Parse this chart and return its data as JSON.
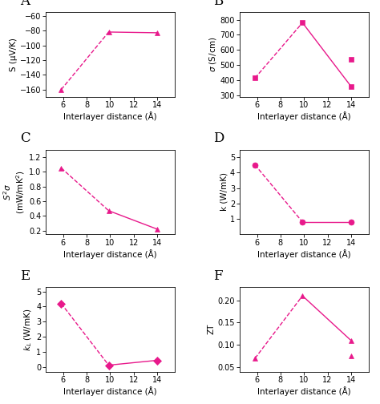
{
  "color": "#E8198B",
  "x_values": [
    5.83,
    9.87,
    14.0
  ],
  "A": {
    "label": "S (μV/K)",
    "y": [
      -160,
      -82,
      -83
    ],
    "marker": "^",
    "ylim": [
      -170,
      -55
    ],
    "yticks": [
      -160,
      -140,
      -120,
      -100,
      -80,
      -60
    ],
    "panel": "A",
    "extra_x": null,
    "extra_y": null,
    "extra_marker": null
  },
  "B": {
    "label": "s (S/cm)",
    "y": [
      415,
      780,
      360
    ],
    "marker": "s",
    "ylim": [
      290,
      850
    ],
    "yticks": [
      300,
      400,
      500,
      600,
      700,
      800
    ],
    "panel": "B",
    "extra_x": 14.0,
    "extra_y": 540,
    "extra_marker": "s"
  },
  "C": {
    "label": "S²σ (mW/mK²)",
    "y": [
      1.05,
      0.47,
      0.22
    ],
    "marker": "^",
    "ylim": [
      0.15,
      1.3
    ],
    "yticks": [
      0.2,
      0.4,
      0.6,
      0.8,
      1.0,
      1.2
    ],
    "panel": "C",
    "extra_x": null,
    "extra_y": null,
    "extra_marker": null
  },
  "D": {
    "label": "k (W/mK)",
    "y": [
      4.5,
      0.8,
      0.8
    ],
    "marker": "o",
    "ylim": [
      0,
      5.5
    ],
    "yticks": [
      1,
      2,
      3,
      4,
      5
    ],
    "panel": "D",
    "extra_x": null,
    "extra_y": null,
    "extra_marker": null
  },
  "E": {
    "label": "kₗ (W/mK)",
    "y": [
      4.2,
      0.13,
      0.45
    ],
    "marker": "D",
    "ylim": [
      -0.3,
      5.3
    ],
    "yticks": [
      0,
      1,
      2,
      3,
      4,
      5
    ],
    "panel": "E",
    "extra_x": null,
    "extra_y": null,
    "extra_marker": null
  },
  "F": {
    "label": "ZT",
    "y": [
      0.07,
      0.21,
      0.11
    ],
    "marker": "^",
    "ylim": [
      0.04,
      0.23
    ],
    "yticks": [
      0.05,
      0.1,
      0.15,
      0.2
    ],
    "panel": "F",
    "extra_x": 14.0,
    "extra_y": 0.075,
    "extra_marker": "^"
  },
  "xlabel": "Interlayer distance (Å)",
  "xticks": [
    6,
    8,
    10,
    12,
    14
  ],
  "xlim": [
    4.5,
    15.5
  ]
}
